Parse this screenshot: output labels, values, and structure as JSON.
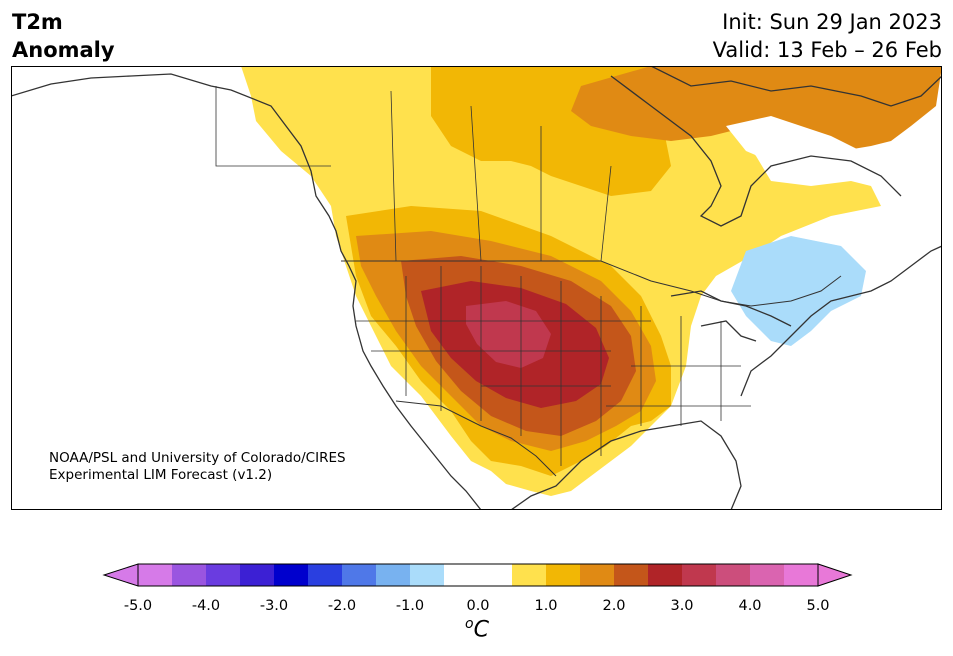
{
  "title": {
    "variable_line1": "T2m",
    "variable_line2": "Anomaly",
    "init": "Init: Sun 29 Jan 2023",
    "valid": "Valid: 13 Feb – 26 Feb"
  },
  "credit": {
    "line1": "NOAA/PSL and University of Colorado/CIRES",
    "line2": "Experimental LIM Forecast (v1.2)"
  },
  "colorbar": {
    "tick_labels": [
      "-5.0",
      "-4.0",
      "-3.0",
      "-2.0",
      "-1.0",
      "0.0",
      "1.0",
      "2.0",
      "3.0",
      "4.0",
      "5.0"
    ],
    "units_symbol": "o",
    "units_letter": "C",
    "under_color": "#d67ae8",
    "over_color": "#e878d8",
    "colors": [
      "#d67ae8",
      "#9a55e0",
      "#6a3ce0",
      "#3c20d4",
      "#0000cd",
      "#2a3fe0",
      "#4f78e8",
      "#78b2f0",
      "#aadcfa",
      "#ffffff",
      "#ffffff",
      "#ffe14d",
      "#f2b705",
      "#e08a14",
      "#c4561a",
      "#b02428",
      "#c0384e",
      "#cc4e7c",
      "#da64b0",
      "#e878d8"
    ]
  },
  "map_colors": {
    "land_outline": "#333333",
    "anom_05_1": "#ffe14d",
    "anom_1_15": "#f2b705",
    "anom_15_2": "#e08a14",
    "anom_2_25": "#c4561a",
    "anom_25_3": "#b02428",
    "anom_3_35": "#c0384e",
    "cold_05_1": "#aadcfa"
  }
}
